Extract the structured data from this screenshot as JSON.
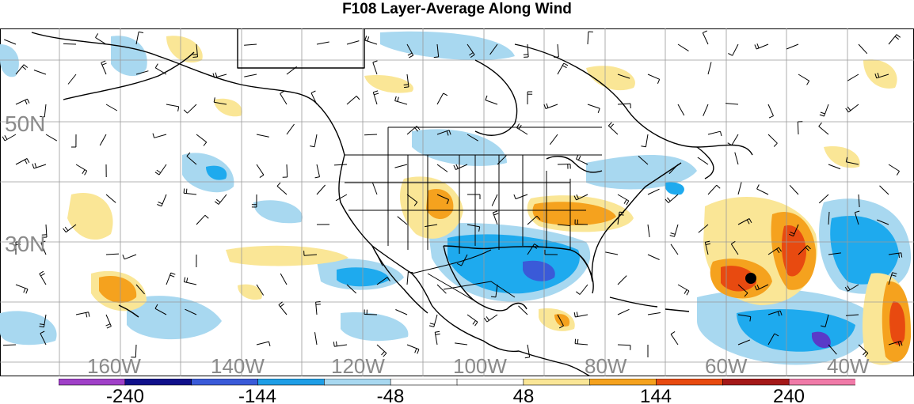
{
  "title": "F108 Layer-Average Along Wind",
  "map": {
    "lat_labels": [
      "50N",
      "30N"
    ],
    "lon_labels": [
      "160W",
      "140W",
      "120W",
      "100W",
      "80W",
      "60W",
      "40W"
    ],
    "marker": "black-dot-storm-center"
  },
  "colorbar": {
    "labels": [
      "-240",
      "-144",
      "-48",
      "48",
      "144",
      "240"
    ],
    "colors": [
      "#a040c8",
      "#10108a",
      "#3a5ad8",
      "#1e9ee6",
      "#a8d8f0",
      "#ffffff",
      "#ffffff",
      "#fae696",
      "#f5a21e",
      "#e84a10",
      "#a41818",
      "#f07aa8"
    ]
  },
  "palette": {
    "blue_light": "#a8d8f0",
    "blue_mid": "#1eaaee",
    "blue_dark": "#3a5ad8",
    "purple": "#5a3ac8",
    "yellow_light": "#fae696",
    "orange": "#f5a21e",
    "red_orange": "#e84a10"
  }
}
